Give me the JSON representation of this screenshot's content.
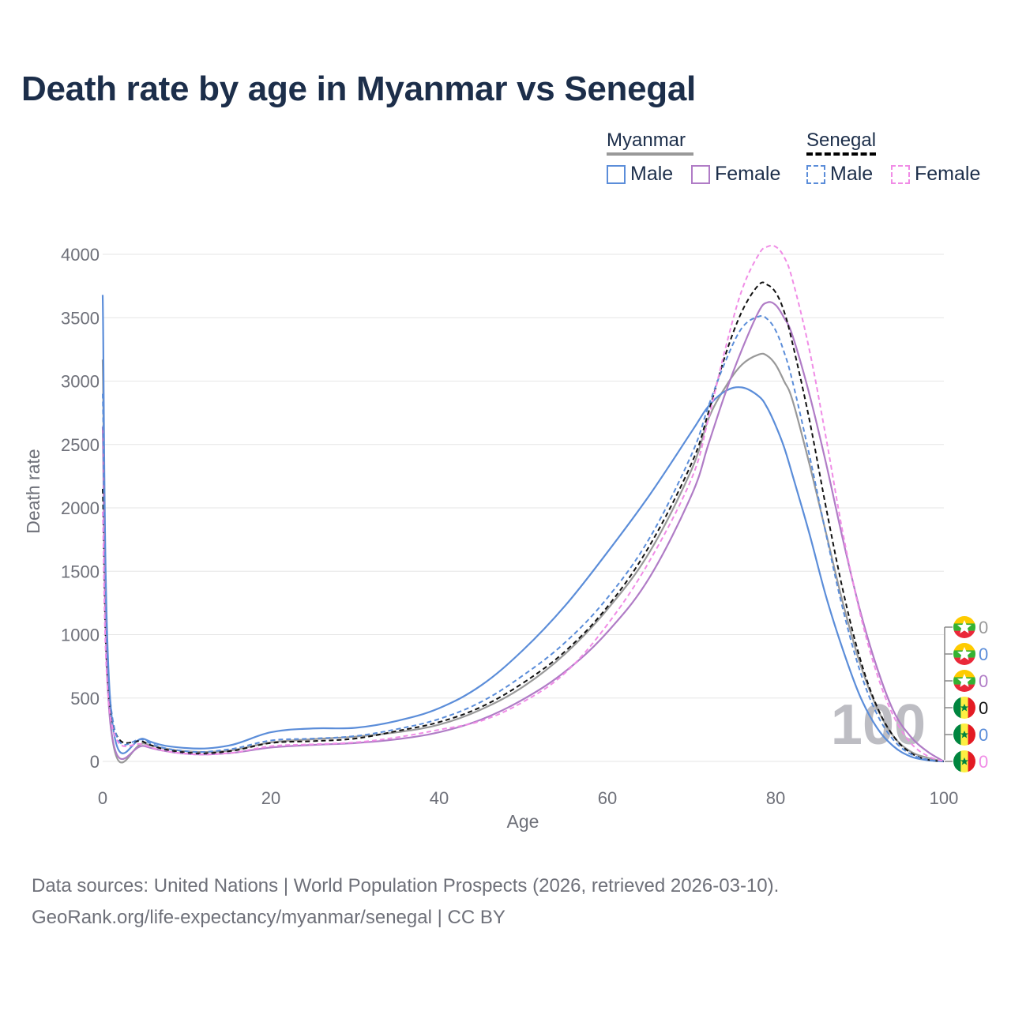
{
  "title": "Death rate by age in Myanmar vs Senegal",
  "legend": {
    "groups": [
      {
        "name": "Myanmar",
        "underline_color": "#999999",
        "underline_style": "solid",
        "items": [
          {
            "label": "Male",
            "color": "#5b8dd9",
            "style": "solid"
          },
          {
            "label": "Female",
            "color": "#b07cc6",
            "style": "solid"
          }
        ]
      },
      {
        "name": "Senegal",
        "underline_color": "#000000",
        "underline_style": "dashed",
        "items": [
          {
            "label": "Male",
            "color": "#5b8dd9",
            "style": "dashed"
          },
          {
            "label": "Female",
            "color": "#f08ce6",
            "style": "dashed"
          }
        ]
      }
    ]
  },
  "sources": {
    "line1": "Data sources: United Nations | World Population Prospects (2026, retrieved 2026-03-10).",
    "line2": "GeoRank.org/life-expectancy/myanmar/senegal | CC BY"
  },
  "chart_data": {
    "type": "line",
    "title": "Death rate by age in Myanmar vs Senegal",
    "xlabel": "Age",
    "ylabel": "Death rate",
    "xlim": [
      0,
      100
    ],
    "ylim": [
      0,
      4000
    ],
    "xticks": [
      0,
      20,
      40,
      60,
      80,
      100
    ],
    "yticks": [
      0,
      500,
      1000,
      1500,
      2000,
      2500,
      3000,
      3500,
      4000
    ],
    "grid": true,
    "watermark": "100",
    "x": [
      0,
      1,
      5,
      10,
      15,
      20,
      25,
      30,
      35,
      40,
      45,
      50,
      55,
      60,
      65,
      70,
      72,
      74,
      76,
      78,
      79,
      80,
      81,
      82,
      84,
      86,
      88,
      90,
      92,
      94,
      96,
      98,
      100
    ],
    "series": [
      {
        "name": "Myanmar Total",
        "color": "#999999",
        "dash": false,
        "values": [
          3170,
          260,
          140,
          80,
          85,
          150,
          175,
          195,
          230,
          290,
          410,
          590,
          850,
          1200,
          1650,
          2300,
          2700,
          2950,
          3130,
          3210,
          3200,
          3130,
          3000,
          2850,
          2350,
          1800,
          1250,
          780,
          430,
          200,
          80,
          30,
          0
        ]
      },
      {
        "name": "Myanmar Male",
        "color": "#5b8dd9",
        "dash": false,
        "values": [
          3680,
          400,
          175,
          105,
          125,
          230,
          260,
          265,
          320,
          420,
          600,
          880,
          1230,
          1650,
          2100,
          2600,
          2800,
          2920,
          2950,
          2880,
          2790,
          2650,
          2480,
          2260,
          1800,
          1300,
          880,
          520,
          270,
          120,
          40,
          10,
          0
        ]
      },
      {
        "name": "Myanmar Female",
        "color": "#b07cc6",
        "dash": false,
        "values": [
          2640,
          250,
          120,
          60,
          65,
          110,
          130,
          145,
          175,
          230,
          330,
          490,
          710,
          1020,
          1450,
          2100,
          2500,
          2900,
          3250,
          3550,
          3620,
          3600,
          3500,
          3360,
          2900,
          2350,
          1750,
          1200,
          750,
          400,
          200,
          80,
          0
        ]
      },
      {
        "name": "Senegal Total",
        "color": "#111111",
        "dash": true,
        "values": [
          2150,
          370,
          150,
          70,
          80,
          145,
          160,
          180,
          240,
          310,
          430,
          620,
          870,
          1220,
          1700,
          2350,
          2750,
          3200,
          3550,
          3760,
          3760,
          3700,
          3550,
          3300,
          2700,
          2000,
          1350,
          820,
          440,
          200,
          70,
          15,
          0
        ]
      },
      {
        "name": "Senegal Male",
        "color": "#5b8dd9",
        "dash": true,
        "values": [
          2900,
          420,
          165,
          80,
          95,
          165,
          180,
          200,
          255,
          335,
          470,
          680,
          940,
          1290,
          1760,
          2420,
          2800,
          3150,
          3420,
          3510,
          3490,
          3400,
          3230,
          3000,
          2420,
          1790,
          1200,
          720,
          380,
          170,
          60,
          15,
          0
        ]
      },
      {
        "name": "Senegal Female",
        "color": "#f08ce6",
        "dash": true,
        "values": [
          1970,
          320,
          130,
          60,
          65,
          120,
          135,
          150,
          190,
          250,
          320,
          470,
          700,
          1080,
          1580,
          2230,
          2700,
          3250,
          3720,
          4000,
          4060,
          4060,
          3980,
          3800,
          3250,
          2550,
          1800,
          1180,
          700,
          360,
          150,
          45,
          0
        ]
      }
    ],
    "end_labels": [
      {
        "series": "Myanmar Total",
        "country": "Myanmar",
        "value": "0",
        "color": "#999999"
      },
      {
        "series": "Myanmar Male",
        "country": "Myanmar",
        "value": "0",
        "color": "#5b8dd9"
      },
      {
        "series": "Myanmar Female",
        "country": "Myanmar",
        "value": "0",
        "color": "#b07cc6"
      },
      {
        "series": "Senegal Total",
        "country": "Senegal",
        "value": "0",
        "color": "#111111"
      },
      {
        "series": "Senegal Male",
        "country": "Senegal",
        "value": "0",
        "color": "#5b8dd9"
      },
      {
        "series": "Senegal Female",
        "country": "Senegal",
        "value": "0",
        "color": "#f08ce6"
      }
    ]
  }
}
